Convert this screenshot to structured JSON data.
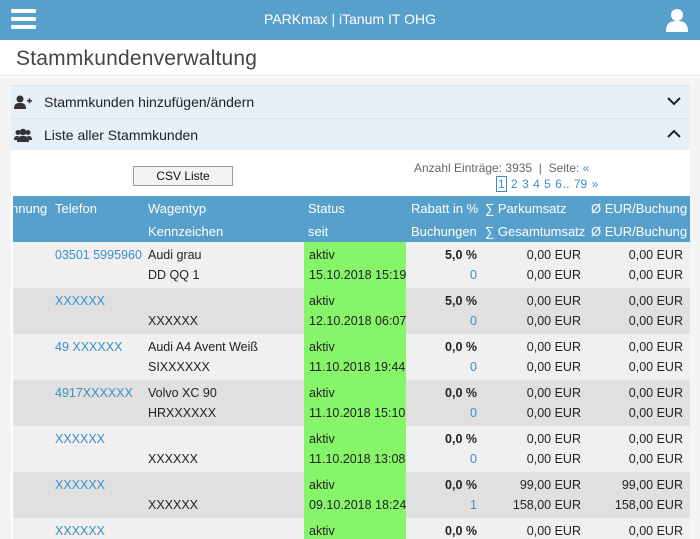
{
  "header": {
    "title": "PARKmax | iTanum IT OHG"
  },
  "page": {
    "title": "Stammkundenverwaltung"
  },
  "accordions": [
    {
      "label": "Stammkunden hinzufügen/ändern",
      "icon": "user-plus-icon",
      "state": "collapsed"
    },
    {
      "label": "Liste aller Stammkunden",
      "icon": "users-icon",
      "state": "expanded"
    }
  ],
  "list": {
    "csv_button": "CSV Liste",
    "entries_label": "Anzahl Einträge:",
    "entries_count": "3935",
    "separator": "|",
    "page_label": "Seite:",
    "prev": "«",
    "pages": [
      "1",
      "2",
      "3",
      "4",
      "5",
      "6"
    ],
    "current_page": "1",
    "dots": "..",
    "last_page": "79",
    "next": "»"
  },
  "table": {
    "columns_row1": [
      "nnung",
      "Telefon",
      "Wagentyp",
      "Status",
      "Rabatt in %",
      "∑ Parkumsatz",
      "Ø EUR/Buchung"
    ],
    "columns_row2": [
      "Kennzeichen",
      "seit",
      "Buchungen",
      "∑ Gesamtumsatz",
      "Ø EUR/Buchung"
    ],
    "rows": [
      {
        "phone": "03501 5995960",
        "car": "Audi grau",
        "plate": "DD QQ 1",
        "status": "aktiv",
        "since": "15.10.2018 15:19",
        "discount": "5,0 %",
        "bookings": "0",
        "park_sum": "0,00 EUR",
        "total_sum": "0,00 EUR",
        "avg1": "0,00 EUR",
        "avg2": "0,00 EUR"
      },
      {
        "phone": "XXXXXX",
        "car": "",
        "plate": "XXXXXX",
        "status": "aktiv",
        "since": "12.10.2018 06:07",
        "discount": "5,0 %",
        "bookings": "0",
        "park_sum": "0,00 EUR",
        "total_sum": "0,00 EUR",
        "avg1": "0,00 EUR",
        "avg2": "0,00 EUR"
      },
      {
        "phone": "49 XXXXXX",
        "car": "Audi A4 Avent Weiß",
        "plate": "SIXXXXXX",
        "status": "aktiv",
        "since": "11.10.2018 19:44",
        "discount": "0,0 %",
        "bookings": "0",
        "park_sum": "0,00 EUR",
        "total_sum": "0,00 EUR",
        "avg1": "0,00 EUR",
        "avg2": "0,00 EUR"
      },
      {
        "phone": "4917XXXXXX",
        "car": "Volvo XC 90",
        "plate": "HRXXXXXX",
        "status": "aktiv",
        "since": "11.10.2018 15:10",
        "discount": "0,0 %",
        "bookings": "0",
        "park_sum": "0,00 EUR",
        "total_sum": "0,00 EUR",
        "avg1": "0,00 EUR",
        "avg2": "0,00 EUR"
      },
      {
        "phone": "XXXXXX",
        "car": "",
        "plate": "XXXXXX",
        "status": "aktiv",
        "since": "11.10.2018 13:08",
        "discount": "0,0 %",
        "bookings": "0",
        "park_sum": "0,00 EUR",
        "total_sum": "0,00 EUR",
        "avg1": "0,00 EUR",
        "avg2": "0,00 EUR"
      },
      {
        "phone": "XXXXXX",
        "car": "",
        "plate": "XXXXXX",
        "status": "aktiv",
        "since": "09.10.2018 18:24",
        "discount": "0,0 %",
        "bookings": "1",
        "park_sum": "99,00 EUR",
        "total_sum": "158,00 EUR",
        "avg1": "99,00 EUR",
        "avg2": "158,00 EUR"
      },
      {
        "phone": "XXXXXX",
        "car": "",
        "plate": "",
        "status": "aktiv",
        "since": "",
        "discount": "0,0 %",
        "bookings": "",
        "park_sum": "0,00 EUR",
        "total_sum": "",
        "avg1": "0,00 EUR",
        "avg2": ""
      }
    ]
  },
  "colors": {
    "accent": "#58a0cc",
    "status_active": "#86f56a",
    "link": "#3b8fc6"
  }
}
